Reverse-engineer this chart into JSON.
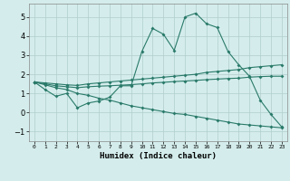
{
  "xlabel": "Humidex (Indice chaleur)",
  "x_values": [
    0,
    1,
    2,
    3,
    4,
    5,
    6,
    7,
    8,
    9,
    10,
    11,
    12,
    13,
    14,
    15,
    16,
    17,
    18,
    19,
    20,
    21,
    22,
    23
  ],
  "line1_y": [
    1.6,
    1.2,
    0.85,
    1.0,
    0.25,
    0.5,
    0.6,
    0.8,
    1.4,
    1.4,
    3.2,
    4.4,
    4.1,
    3.25,
    5.0,
    5.2,
    4.65,
    4.45,
    3.2,
    2.5,
    1.9,
    0.65,
    -0.1,
    -0.75
  ],
  "line2_y": [
    1.6,
    1.55,
    1.5,
    1.45,
    1.42,
    1.5,
    1.55,
    1.6,
    1.65,
    1.7,
    1.75,
    1.8,
    1.85,
    1.9,
    1.95,
    2.0,
    2.1,
    2.15,
    2.2,
    2.25,
    2.35,
    2.4,
    2.45,
    2.5
  ],
  "line3_y": [
    1.6,
    1.5,
    1.4,
    1.35,
    1.3,
    1.35,
    1.38,
    1.4,
    1.43,
    1.46,
    1.5,
    1.55,
    1.58,
    1.62,
    1.65,
    1.68,
    1.72,
    1.75,
    1.78,
    1.8,
    1.85,
    1.88,
    1.9,
    1.9
  ],
  "line4_y": [
    1.6,
    1.45,
    1.3,
    1.2,
    1.0,
    0.9,
    0.75,
    0.65,
    0.5,
    0.35,
    0.25,
    0.15,
    0.05,
    -0.05,
    -0.1,
    -0.2,
    -0.3,
    -0.4,
    -0.5,
    -0.6,
    -0.65,
    -0.7,
    -0.75,
    -0.8
  ],
  "line_color": "#2a7a6a",
  "bg_color": "#d4edec",
  "grid_color": "#b0cccc",
  "ylim": [
    -1.5,
    5.7
  ],
  "yticks": [
    -1,
    0,
    1,
    2,
    3,
    4,
    5
  ],
  "xlim": [
    -0.5,
    23.5
  ]
}
